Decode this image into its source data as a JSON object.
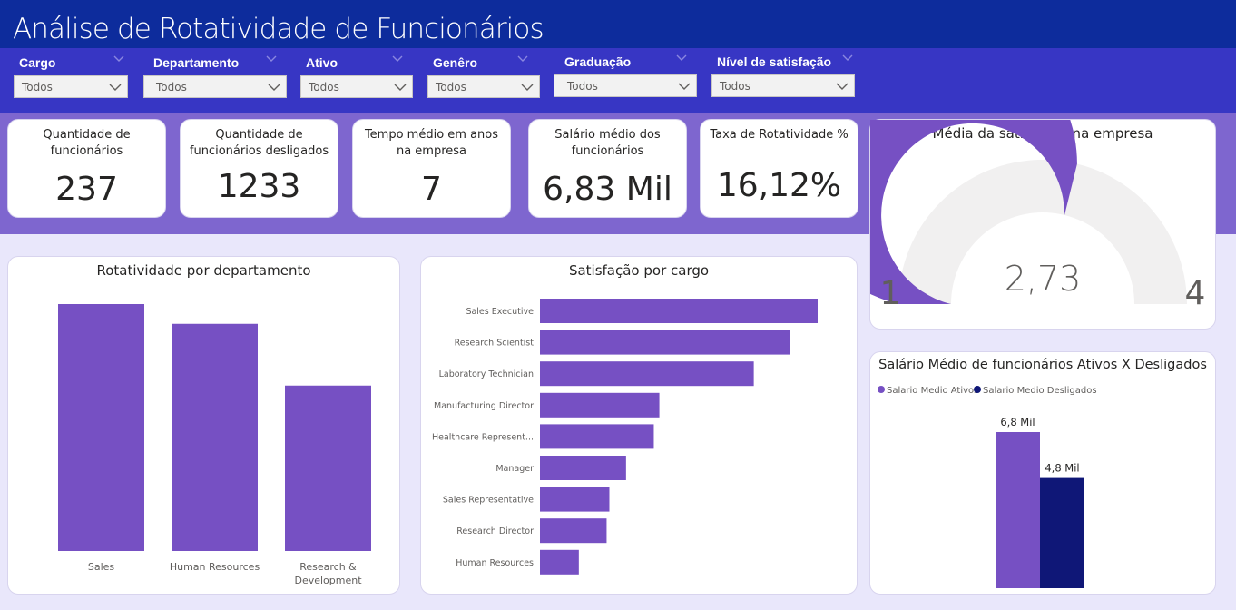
{
  "title": "Análise de Rotatividade de Funcionários",
  "colors": {
    "header": "#0d2c9c",
    "filterbar": "#3736c4",
    "kpiband": "#7e66cf",
    "background": "#e9e7fb",
    "bar": "#7650c3",
    "dark_series": "#0f1777",
    "gauge_track": "#f1f0f0"
  },
  "filters": [
    {
      "label": "Cargo",
      "value": "Todos"
    },
    {
      "label": "Departamento",
      "value": "Todos"
    },
    {
      "label": "Ativo",
      "value": "Todos"
    },
    {
      "label": "Genêro",
      "value": "Todos"
    },
    {
      "label": "Graduação",
      "value": "Todos"
    },
    {
      "label": "Nível de satisfação",
      "value": "Todos"
    }
  ],
  "kpis": [
    {
      "label": "Quantidade de funcionários",
      "value": "237"
    },
    {
      "label": "Quantidade de funcionários desligados",
      "value": "1233"
    },
    {
      "label": "Tempo médio em anos na empresa",
      "value": "7"
    },
    {
      "label": "Salário médio dos funcionários",
      "value": "6,83 Mil"
    },
    {
      "label": "Taxa de Rotatividade %",
      "value": "16,12%"
    }
  ],
  "chart_data": [
    {
      "type": "gauge",
      "title": "Média da satisfação na empresa",
      "value": 2.73,
      "value_label": "2,73",
      "min": 1,
      "min_label": "1",
      "max": 4,
      "max_label": "4"
    },
    {
      "type": "bar",
      "title": "Rotatividade por departamento",
      "categories": [
        "Sales",
        "Human Resources",
        "Research & Development"
      ],
      "values": [
        100,
        92,
        67
      ],
      "ylim": [
        0,
        100
      ]
    },
    {
      "type": "bar",
      "orientation": "horizontal",
      "title": "Satisfação por cargo",
      "categories": [
        "Sales Executive",
        "Research Scientist",
        "Laboratory Technician",
        "Manufacturing Director",
        "Healthcare Represent...",
        "Manager",
        "Sales Representative",
        "Research Director",
        "Human Resources"
      ],
      "values": [
        100,
        90,
        77,
        43,
        41,
        31,
        25,
        24,
        14
      ],
      "xlim": [
        0,
        100
      ]
    },
    {
      "type": "bar",
      "title": "Salário Médio de funcionários Ativos X Desligados",
      "series": [
        {
          "name": "Salario Medio Ativos",
          "values": [
            6.8
          ],
          "data_label": "6,8 Mil",
          "color": "#7650c3"
        },
        {
          "name": "Salario Medio Desligados",
          "values": [
            4.8
          ],
          "data_label": "4,8 Mil",
          "color": "#0f1777"
        }
      ],
      "legend": "top-left",
      "ylim": [
        0,
        8.5
      ]
    }
  ]
}
